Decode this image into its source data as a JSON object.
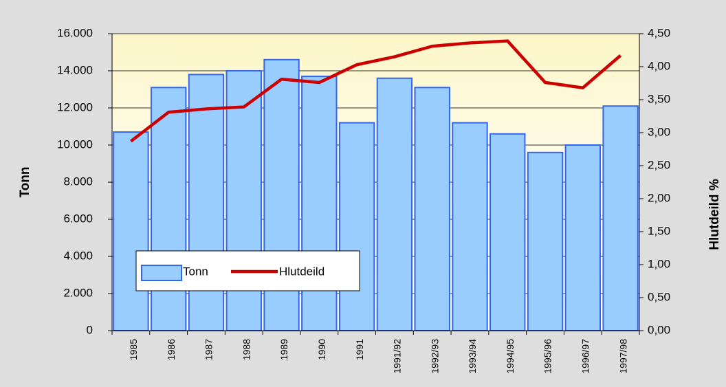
{
  "chart_data": {
    "type": "combo",
    "categories": [
      "1985",
      "1986",
      "1987",
      "1988",
      "1989",
      "1990",
      "1991",
      "1991/92",
      "1992/93",
      "1993/94",
      "1994/95",
      "1995/96",
      "1996/97",
      "1997/98"
    ],
    "series": [
      {
        "name": "Tonn",
        "type": "bar",
        "color": "#99ccff",
        "edge": "#3366ee",
        "axis": "y",
        "values": [
          10700,
          13100,
          13800,
          14000,
          14600,
          13700,
          11200,
          13600,
          13100,
          11200,
          10600,
          9600,
          10000,
          12100
        ]
      },
      {
        "name": "Hlutdeild",
        "type": "line",
        "color": "#cc0000",
        "axis": "y2",
        "values": [
          2.87,
          3.31,
          3.36,
          3.39,
          3.81,
          3.76,
          4.03,
          4.15,
          4.31,
          4.36,
          4.39,
          3.76,
          3.68,
          4.17
        ]
      }
    ],
    "ylabel": "Tonn",
    "y2label": "Hlutdeild %",
    "ylim": [
      0,
      16000
    ],
    "yticks": [
      0,
      {
        "value": 2000,
        "label": "2.000"
      },
      {
        "value": 4000,
        "label": "4.000"
      },
      {
        "value": 6000,
        "label": "6.000"
      },
      {
        "value": 8000,
        "label": "8.000"
      },
      {
        "value": 10000,
        "label": "10.000"
      },
      {
        "value": 12000,
        "label": "12.000"
      },
      {
        "value": 14000,
        "label": "14.000"
      },
      {
        "value": 16000,
        "label": "16.000"
      }
    ],
    "y2lim": [
      0,
      4.5
    ],
    "y2ticks": [
      {
        "value": 0,
        "label": "0,00"
      },
      {
        "value": 0.5,
        "label": "0,50"
      },
      {
        "value": 1,
        "label": "1,00"
      },
      {
        "value": 1.5,
        "label": "1,50"
      },
      {
        "value": 2,
        "label": "2,00"
      },
      {
        "value": 2.5,
        "label": "2,50"
      },
      {
        "value": 3,
        "label": "3,00"
      },
      {
        "value": 3.5,
        "label": "3,50"
      },
      {
        "value": 4,
        "label": "4,00"
      },
      {
        "value": 4.5,
        "label": "4,50"
      }
    ],
    "grid": true,
    "legend": "bottom-left"
  }
}
